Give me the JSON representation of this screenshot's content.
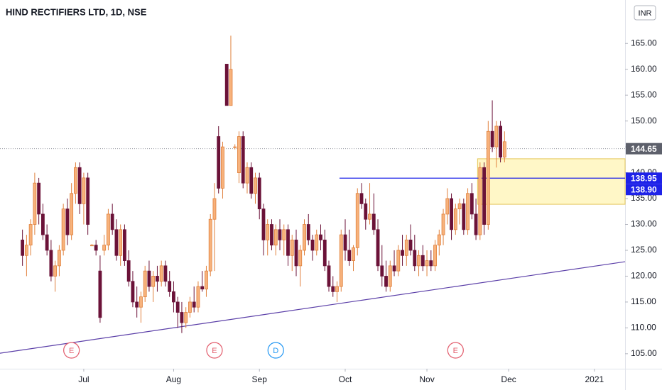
{
  "chart_data": {
    "type": "candlestick",
    "title": "HIND RECTIFIERS LTD, 1D, NSE",
    "currency": "INR",
    "up_color": "#f7b27c",
    "up_border": "#e0803c",
    "down_color": "#6b1238",
    "open": [
      127,
      124,
      126,
      130,
      138,
      132,
      128,
      125,
      120,
      122,
      125,
      133,
      128,
      136,
      141,
      134,
      139,
      126,
      126,
      121,
      125,
      126,
      132,
      129,
      124,
      129,
      123,
      119,
      115,
      114,
      116,
      121,
      118,
      120,
      119,
      122,
      119,
      117,
      115,
      113,
      111,
      113,
      115,
      114,
      118,
      117.5,
      121,
      131,
      147,
      137,
      161,
      153,
      145,
      140,
      147,
      138,
      141,
      136,
      139,
      133,
      127,
      130,
      126,
      129,
      127,
      129,
      124,
      127,
      122,
      125,
      130,
      127,
      125,
      128,
      127,
      122,
      118,
      117,
      118,
      128,
      125,
      123,
      125.5,
      136,
      134,
      131,
      132,
      129,
      122,
      120,
      118,
      122,
      121,
      125,
      124,
      127,
      125,
      122,
      124,
      122,
      123,
      122,
      126,
      128,
      132,
      135,
      129,
      133,
      134,
      129,
      136,
      132,
      128,
      141,
      130,
      148,
      145,
      149,
      143
    ],
    "high": [
      129,
      128,
      131,
      140,
      139,
      134,
      130,
      127,
      123,
      126,
      134,
      135,
      138,
      142,
      142,
      140,
      140,
      126.2,
      127,
      124,
      128,
      133,
      134,
      131,
      130,
      130,
      125,
      121,
      118,
      117,
      122,
      123,
      121,
      122,
      123,
      123,
      121,
      119,
      116,
      115,
      114,
      116,
      118,
      119,
      121,
      122,
      132,
      138,
      149,
      146,
      161,
      166.5,
      145.5,
      148,
      148,
      142,
      142,
      140,
      140,
      134,
      131,
      131,
      130,
      131,
      130,
      130,
      128,
      129,
      126,
      131,
      132,
      128,
      129,
      130,
      129,
      123,
      120,
      119,
      129,
      131,
      129,
      126,
      137,
      138,
      135,
      138,
      136,
      131,
      126,
      123,
      123,
      125,
      126,
      128,
      128,
      130,
      128,
      125,
      126,
      125,
      125,
      127,
      129,
      133,
      137,
      136,
      134,
      135,
      135,
      137,
      138,
      135,
      142,
      142,
      150,
      154,
      150,
      150,
      148
    ],
    "low": [
      122,
      120,
      124,
      128,
      130,
      127,
      124,
      119,
      117,
      120,
      124,
      126,
      127,
      134,
      132,
      130,
      128,
      125.8,
      124,
      111,
      124,
      125,
      128,
      123,
      122,
      122,
      118,
      114,
      112,
      111,
      115,
      117,
      115,
      117,
      118,
      118,
      116,
      113,
      110,
      109,
      110,
      112,
      113,
      113,
      117,
      116,
      120,
      121,
      136,
      135,
      153,
      153,
      144.5,
      138,
      137,
      136,
      135,
      134,
      131,
      124,
      124,
      125,
      124,
      125,
      124,
      122,
      121,
      120,
      118,
      124,
      126,
      123,
      124,
      125,
      121,
      117,
      116,
      115,
      117,
      123,
      122,
      121,
      124,
      133,
      129,
      130,
      128,
      121,
      118,
      117,
      117,
      120,
      120,
      122,
      122,
      124,
      121,
      120,
      121,
      120,
      121,
      121,
      124,
      126,
      130,
      127,
      128,
      130,
      128,
      128,
      131,
      127,
      127,
      128,
      129,
      144,
      141,
      142,
      142
    ],
    "close": [
      124,
      126,
      130,
      138,
      132,
      128,
      125,
      120,
      122,
      125,
      133,
      128,
      136,
      141,
      134,
      139,
      130,
      126,
      125,
      112,
      126,
      132,
      129,
      124,
      129,
      123,
      119,
      115,
      114,
      116,
      121,
      118,
      120,
      119,
      122,
      119,
      117,
      115,
      113,
      111,
      113,
      115,
      114,
      118,
      117.5,
      121,
      131,
      135,
      137,
      145,
      153,
      160,
      145,
      147,
      138,
      141,
      136,
      139,
      133,
      127,
      130,
      126,
      129,
      127,
      129,
      124,
      127,
      122,
      125,
      130,
      127,
      125,
      128,
      127,
      122,
      118,
      117,
      118,
      128,
      125,
      123,
      125.5,
      136,
      134,
      131,
      132,
      129,
      122,
      120,
      118,
      122,
      121,
      125,
      124,
      127,
      125,
      122,
      124,
      122,
      123,
      122,
      126,
      128,
      132,
      135,
      129,
      133,
      134,
      129,
      136,
      132,
      128,
      141,
      130,
      148,
      145,
      149,
      143,
      146
    ],
    "xlim": [
      -5.5,
      147.5
    ],
    "ylim": [
      102.1,
      173.4
    ],
    "xticks": [
      {
        "value": 15,
        "label": "Jul"
      },
      {
        "value": 37,
        "label": "Aug"
      },
      {
        "value": 58,
        "label": "Sep"
      },
      {
        "value": 79,
        "label": "Oct"
      },
      {
        "value": 99,
        "label": "Nov"
      },
      {
        "value": 119,
        "label": "Dec"
      },
      {
        "value": 140,
        "label": "2021"
      }
    ],
    "yticks": [
      {
        "value": 105,
        "label": "105.00"
      },
      {
        "value": 110,
        "label": "110.00"
      },
      {
        "value": 115,
        "label": "115.00"
      },
      {
        "value": 120,
        "label": "120.00"
      },
      {
        "value": 125,
        "label": "125.00"
      },
      {
        "value": 130,
        "label": "130.00"
      },
      {
        "value": 135,
        "label": "135.00"
      },
      {
        "value": 140,
        "label": "140.00"
      },
      {
        "value": 145,
        "label": "145.00"
      },
      {
        "value": 150,
        "label": "150.00"
      },
      {
        "value": 155,
        "label": "155.00"
      },
      {
        "value": 160,
        "label": "160.00"
      },
      {
        "value": 165,
        "label": "165.00"
      }
    ],
    "price_labels": [
      {
        "value": 144.65,
        "label": "144.65",
        "color": "#5d606b"
      },
      {
        "value": 138.95,
        "label": "138.95",
        "color": "#1e22e8"
      },
      {
        "value": 138.9,
        "label": "138.90",
        "color": "#1e22e8"
      }
    ],
    "trendline": {
      "x": [
        -5.5,
        147.5
      ],
      "y": [
        105.1,
        122.8
      ],
      "color": "#5b3fa8"
    },
    "hline": {
      "x": [
        77.6,
        147.5
      ],
      "y": 138.95,
      "color": "#1e22e8"
    },
    "zone": {
      "x": [
        111.4,
        147.5
      ],
      "y": [
        133.9,
        142.7
      ],
      "color": "#fff7c7",
      "border": "#e6c75a"
    },
    "events": [
      {
        "index": 12,
        "label": "E",
        "color": "#e25b6b"
      },
      {
        "index": 47,
        "label": "E",
        "color": "#e25b6b"
      },
      {
        "index": 62,
        "label": "D",
        "color": "#2196f3"
      },
      {
        "index": 106,
        "label": "E",
        "color": "#e25b6b"
      }
    ]
  }
}
